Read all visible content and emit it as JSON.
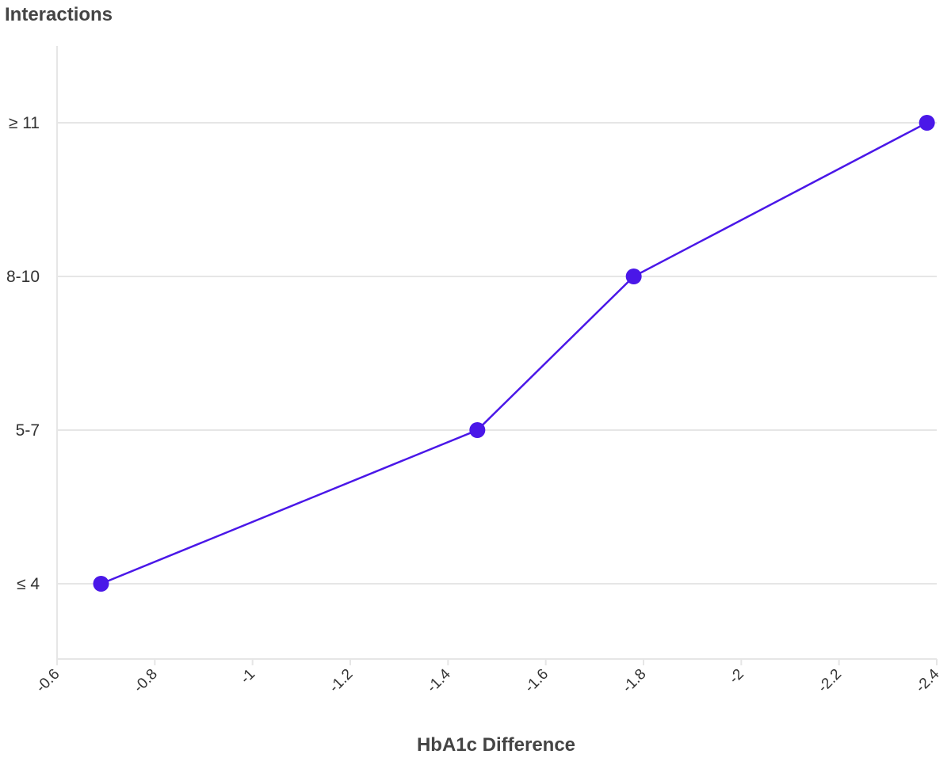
{
  "chart_data": {
    "type": "line",
    "xlabel": "HbA1c Difference",
    "ylabel": "Interactions",
    "x_ticks": [
      "-0.6",
      "-0.8",
      "-1",
      "-1.2",
      "-1.4",
      "-1.6",
      "-1.8",
      "-2",
      "-2.2",
      "-2.4"
    ],
    "x_tick_values": [
      -0.6,
      -0.8,
      -1,
      -1.2,
      -1.4,
      -1.6,
      -1.8,
      -2,
      -2.2,
      -2.4
    ],
    "xlim": [
      -0.6,
      -2.4
    ],
    "x_reversed": true,
    "categories": [
      "≤ 4",
      "5-7",
      "8-10",
      "≥ 11"
    ],
    "series": [
      {
        "points": [
          {
            "x": -0.69,
            "category": "≤ 4"
          },
          {
            "x": -1.46,
            "category": "5-7"
          },
          {
            "x": -1.78,
            "category": "8-10"
          },
          {
            "x": -2.38,
            "category": "≥ 11"
          }
        ]
      }
    ],
    "grid": true,
    "colors": {
      "series": "#4a17e8",
      "grid": "#e6e6e6",
      "text": "#333333"
    }
  }
}
